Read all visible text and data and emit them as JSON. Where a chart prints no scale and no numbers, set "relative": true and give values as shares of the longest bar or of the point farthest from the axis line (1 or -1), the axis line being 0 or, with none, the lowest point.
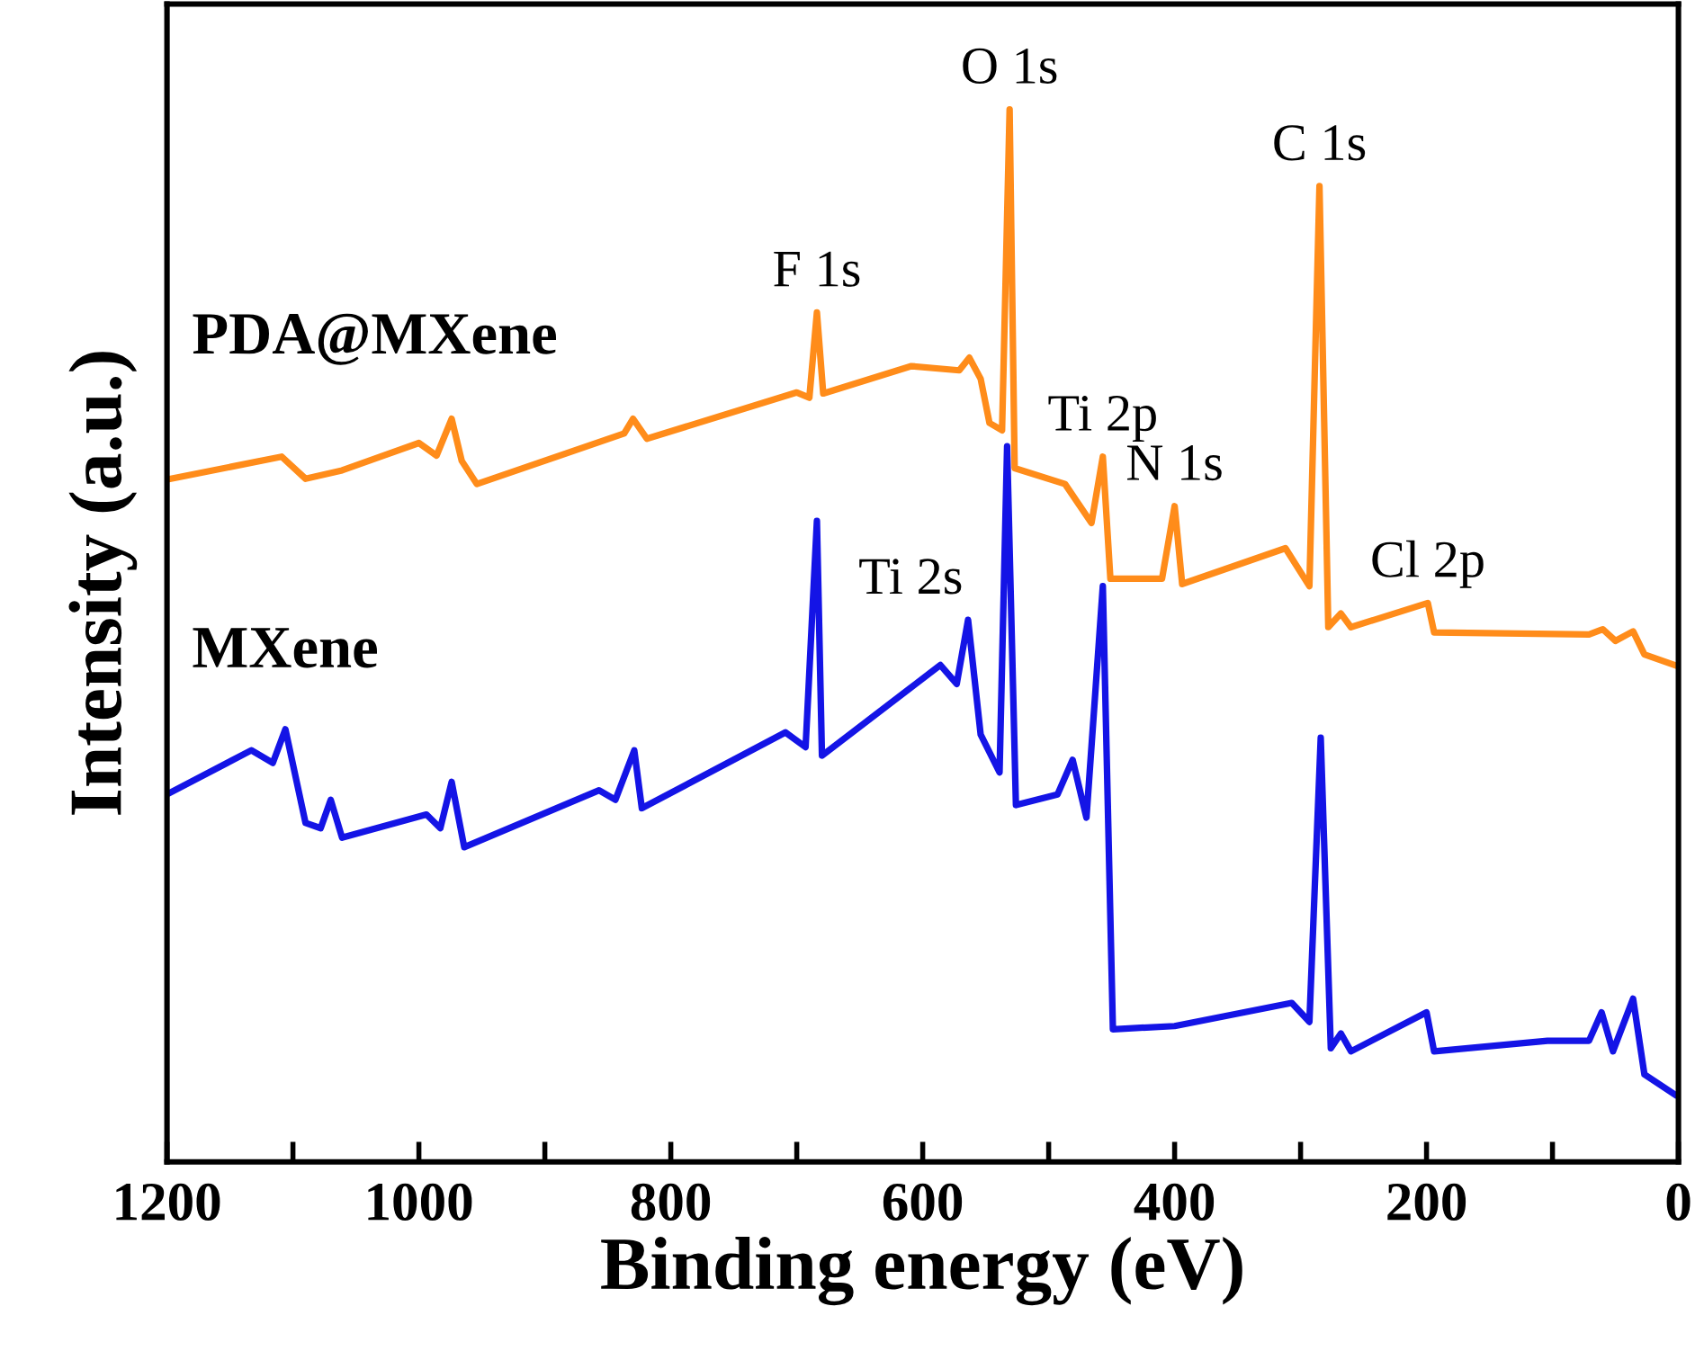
{
  "chart_data": {
    "type": "line",
    "relative": true,
    "xlabel": "Binding energy (eV)",
    "ylabel": "Intensity (a.u.)",
    "xlim": [
      1200,
      0
    ],
    "xticks": [
      1200,
      {
        "value": 1100,
        "label": null
      },
      1000,
      {
        "value": 900,
        "label": null
      },
      800,
      {
        "value": 700,
        "label": null
      },
      600,
      {
        "value": 500,
        "label": null
      },
      400,
      {
        "value": 300,
        "label": null
      },
      200,
      {
        "value": 100,
        "label": null
      },
      0
    ],
    "tick_labels": "x",
    "grid": false,
    "legend": false,
    "marker": "none",
    "line_style": "solid",
    "series": [
      {
        "name": "PDA@MXene",
        "color": "#ff8c1a",
        "x": [
          1197,
          1109,
          1090,
          1061,
          1000,
          986,
          974,
          966,
          954,
          837,
          830,
          819,
          700,
          690,
          684,
          679,
          609,
          571,
          563,
          554,
          547,
          537,
          531,
          527,
          487,
          466,
          457,
          451,
          410,
          400,
          394,
          312,
          293,
          285,
          278,
          268,
          260,
          199,
          194,
          71,
          60,
          50,
          36,
          27,
          3
        ],
        "values": [
          0.649,
          0.67,
          0.649,
          0.657,
          0.683,
          0.671,
          0.706,
          0.666,
          0.644,
          0.692,
          0.706,
          0.687,
          0.731,
          0.726,
          0.807,
          0.73,
          0.756,
          0.752,
          0.764,
          0.744,
          0.702,
          0.695,
          1.0,
          0.659,
          0.644,
          0.607,
          0.67,
          0.554,
          0.554,
          0.623,
          0.549,
          0.583,
          0.547,
          0.927,
          0.508,
          0.521,
          0.508,
          0.531,
          0.503,
          0.501,
          0.506,
          0.495,
          0.504,
          0.482,
          0.472
        ]
      },
      {
        "name": "MXene",
        "color": "#1414e6",
        "x": [
          1197,
          1133,
          1116,
          1106,
          1090,
          1078,
          1070,
          1061,
          994,
          983,
          974,
          964,
          857,
          844,
          829,
          823,
          709,
          693,
          684,
          680,
          586,
          573,
          564,
          554,
          539,
          533,
          526,
          493,
          481,
          470,
          457,
          449,
          400,
          307,
          293,
          284,
          276,
          268,
          260,
          200,
          194,
          104,
          71,
          61,
          52,
          36,
          27,
          3
        ],
        "values": [
          0.351,
          0.391,
          0.379,
          0.411,
          0.322,
          0.317,
          0.344,
          0.308,
          0.33,
          0.317,
          0.361,
          0.299,
          0.353,
          0.344,
          0.391,
          0.336,
          0.408,
          0.394,
          0.609,
          0.386,
          0.472,
          0.454,
          0.515,
          0.406,
          0.37,
          0.68,
          0.339,
          0.349,
          0.382,
          0.327,
          0.547,
          0.126,
          0.129,
          0.151,
          0.133,
          0.403,
          0.108,
          0.122,
          0.105,
          0.142,
          0.105,
          0.115,
          0.115,
          0.142,
          0.105,
          0.155,
          0.083,
          0.064
        ]
      }
    ],
    "annotations": [
      {
        "text": "F 1s",
        "x": 684,
        "y": 0.807
      },
      {
        "text": "O 1s",
        "x": 531,
        "y": 1.0
      },
      {
        "text": "C 1s",
        "x": 285,
        "y": 0.927
      },
      {
        "text": "Ti 2p",
        "x": 457,
        "y": 0.67
      },
      {
        "text": "N 1s",
        "x": 400,
        "y": 0.623
      },
      {
        "text": "Cl 2p",
        "x": 199,
        "y": 0.531
      },
      {
        "text": "Ti 2s",
        "x": 564,
        "y": 0.515
      }
    ]
  }
}
